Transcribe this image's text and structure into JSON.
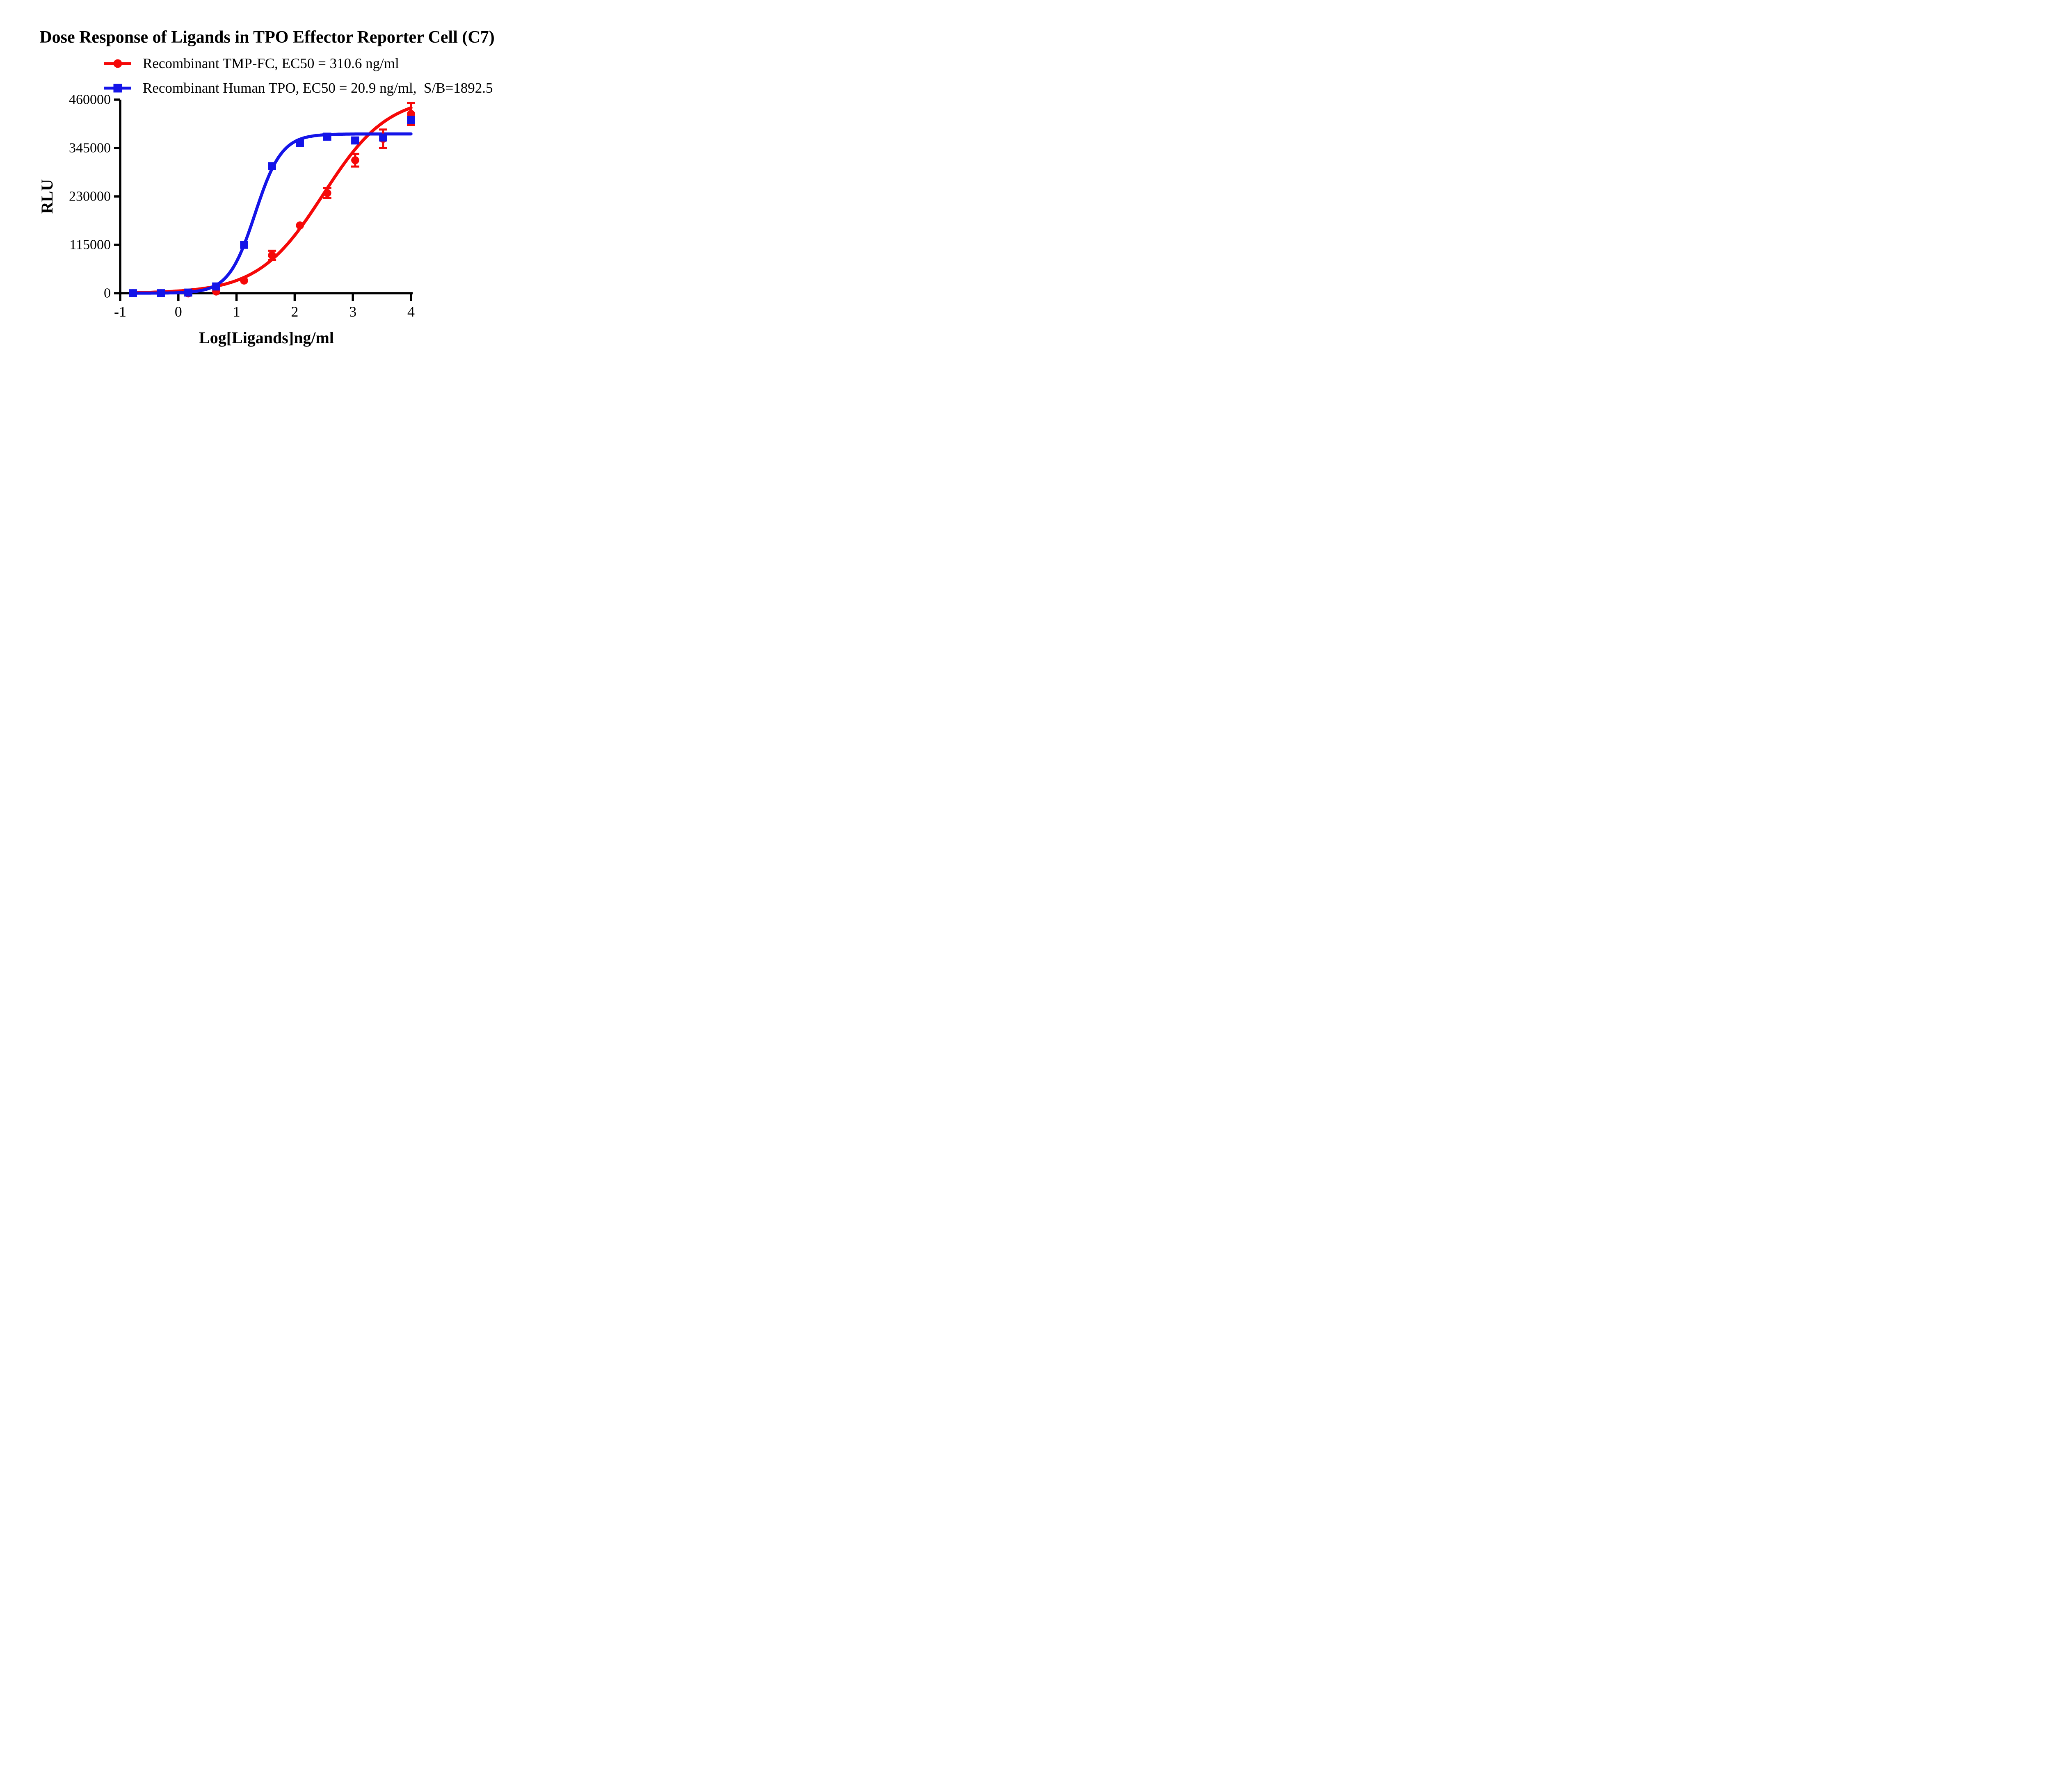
{
  "title": {
    "text": "Dose Response of Ligands in TPO Effector Reporter Cell (C7)"
  },
  "legend": {
    "items": [
      {
        "label": "Recombinant TMP-FC, EC50 = 310.6 ng/ml",
        "color": "#f50808",
        "marker": "circle"
      },
      {
        "label": "Recombinant Human TPO, EC50 = 20.9 ng/ml,  S/B=1892.5",
        "color": "#1414e8",
        "marker": "square"
      }
    ]
  },
  "chart_data": {
    "type": "scatter",
    "title": "Dose Response of Ligands in TPO Effector Reporter Cell (C7)",
    "xlabel": "Log[Ligands]ng/ml",
    "ylabel": "RLU",
    "xlim": [
      -1,
      4
    ],
    "ylim": [
      0,
      460000
    ],
    "x_ticks": [
      -1,
      0,
      1,
      2,
      3,
      4
    ],
    "y_ticks": [
      0,
      115000,
      230000,
      345000,
      460000
    ],
    "grid": false,
    "legend_position": "top-left",
    "axis_color": "#000000",
    "series": [
      {
        "name": "Recombinant TMP-FC, EC50 = 310.6 ng/ml",
        "color": "#f50808",
        "marker": "circle",
        "ec50_ng_ml": 310.6,
        "x": [
          -0.78,
          -0.3,
          0.17,
          0.65,
          1.13,
          1.61,
          2.09,
          2.56,
          3.04,
          3.52,
          4.0
        ],
        "y": [
          0,
          0,
          -500,
          4000,
          30000,
          90000,
          161000,
          238000,
          316000,
          367000,
          426000
        ],
        "yerr": [
          0,
          0,
          0,
          0,
          0,
          11000,
          0,
          12000,
          15000,
          22000,
          26000
        ],
        "fit": {
          "model": "4PL",
          "bottom": 0,
          "top": 470000,
          "logEC50": 2.492,
          "hill": 0.78
        }
      },
      {
        "name": "Recombinant Human TPO, EC50 = 20.9 ng/ml,  S/B=1892.5",
        "color": "#1414e8",
        "marker": "square",
        "ec50_ng_ml": 20.9,
        "signal_to_background": 1892.5,
        "x": [
          -0.78,
          -0.3,
          0.17,
          0.65,
          1.13,
          1.61,
          2.09,
          2.56,
          3.04,
          3.52,
          4.0
        ],
        "y": [
          0,
          0,
          1500,
          16000,
          115000,
          302000,
          357000,
          372000,
          363000,
          370000,
          412000
        ],
        "yerr": [
          0,
          0,
          0,
          0,
          0,
          0,
          0,
          0,
          0,
          0,
          0
        ],
        "fit": {
          "model": "4PL",
          "bottom": 0,
          "top": 378500,
          "logEC50": 1.32,
          "hill": 1.9
        }
      }
    ]
  }
}
